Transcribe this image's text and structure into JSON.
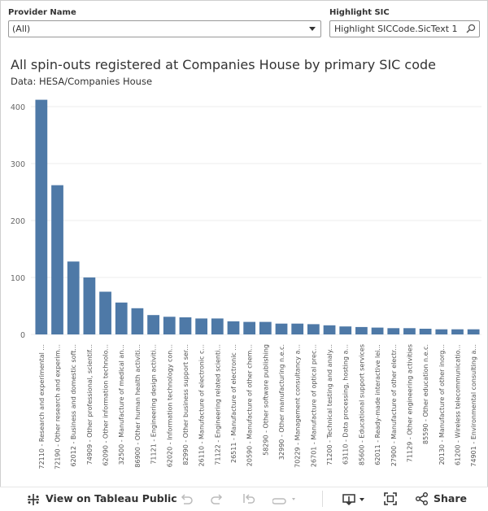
{
  "filters": {
    "provider_label": "Provider Name",
    "provider_value": "(All)",
    "highlight_label": "Highlight SIC",
    "highlight_value": "Highlight SICCode.SicText 1"
  },
  "header": {
    "title": "All spin-outs registered at Companies House by primary SIC code",
    "subtitle": "Data: HESA/Companies House"
  },
  "chart_data": {
    "type": "bar",
    "color": "#4e79a7",
    "ylim": [
      0,
      430
    ],
    "yticks": [
      0,
      100,
      200,
      300,
      400
    ],
    "grid": true,
    "categories": [
      "72110 - Research and experimental ...",
      "72190 - Other research and experim...",
      "62012 - Business and domestic soft...",
      "74909 - Other professional, scientif...",
      "62090 - Other information technolo...",
      "32500 - Manufacture of medical an...",
      "86900 - Other human health activiti...",
      "71121 - Engineering design activiti...",
      "62020 - Information technology con...",
      "82990 - Other business support ser...",
      "26110 - Manufacture of electronic c...",
      "71122 - Engineering related scienti...",
      "26511 - Manufacture of electronic ...",
      "20590 - Manufacture of other chem...",
      "58290 - Other software publishing",
      "32990 - Other manufacturing n.e.c.",
      "70229 - Management consultancy a...",
      "26701 - Manufacture of optical prec...",
      "71200 - Technical testing and analy...",
      "63110 - Data processing, hosting a...",
      "85600 - Educational support services",
      "62011 - Ready-made interactive lei...",
      "27900 - Manufacture of other electr...",
      "71129 - Other engineering activities",
      "85590 - Other education n.e.c.",
      "20130 - Manufacture of other inorg...",
      "61200 - Wireless telecommunicatio...",
      "74901 - Environmental consulting a..."
    ],
    "values": [
      412,
      262,
      128,
      100,
      75,
      56,
      46,
      34,
      31,
      30,
      28,
      28,
      23,
      22,
      22,
      19,
      19,
      18,
      16,
      14,
      13,
      12,
      11,
      11,
      10,
      9,
      9,
      9
    ]
  },
  "footer": {
    "view_label": "View on Tableau Public",
    "share_label": "Share"
  }
}
